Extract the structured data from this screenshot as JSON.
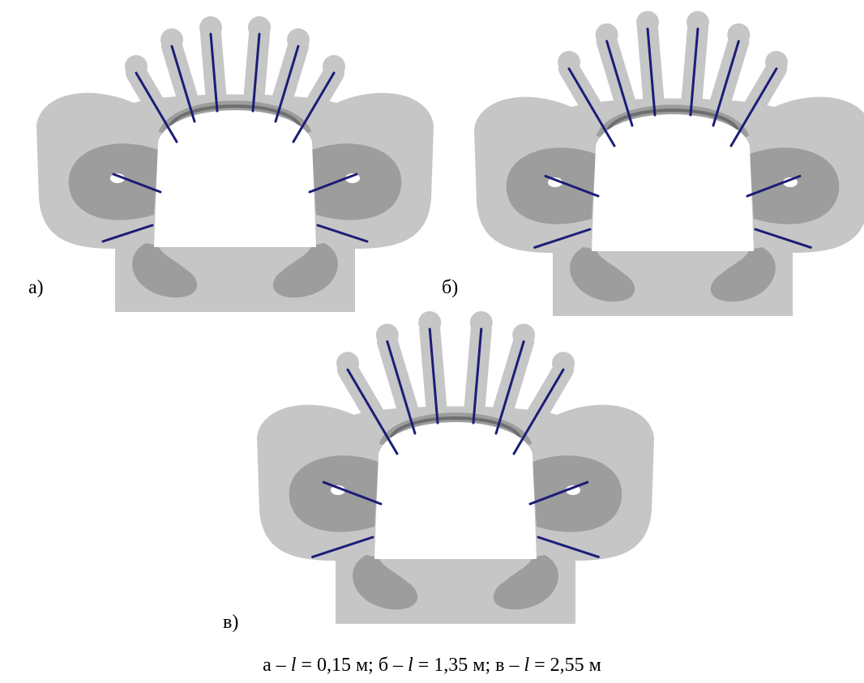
{
  "panels": [
    {
      "label": "а)"
    },
    {
      "label": "б)"
    },
    {
      "label": "в)"
    }
  ],
  "caption": {
    "items": [
      {
        "prefix": "а – ",
        "symbol": "l",
        "suffix": " = 0,15 м;"
      },
      {
        "prefix": " б – ",
        "symbol": "l",
        "suffix": " = 1,35 м;"
      },
      {
        "prefix": " в – ",
        "symbol": "l",
        "suffix": " = 2,55 м"
      }
    ]
  }
}
